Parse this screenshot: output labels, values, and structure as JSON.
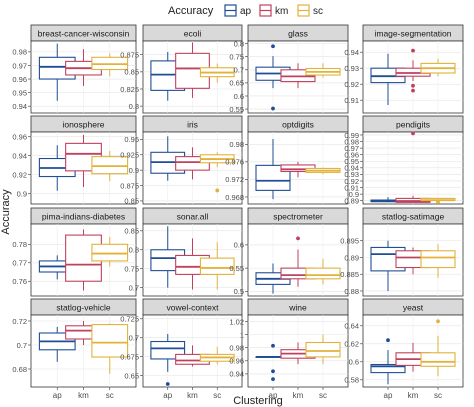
{
  "legend": {
    "title": "Accuracy",
    "items": [
      {
        "key": "ap",
        "label": "ap",
        "color": "#1f4e96"
      },
      {
        "key": "km",
        "label": "km",
        "color": "#c0415e"
      },
      {
        "key": "sc",
        "label": "sc",
        "color": "#e2b23a"
      }
    ],
    "placement": "top"
  },
  "chart_data": {
    "type": "box",
    "xlabel": "Clustering",
    "ylabel": "Accuracy",
    "categories": [
      "ap",
      "km",
      "sc"
    ],
    "grid": true,
    "facets": [
      {
        "title": "breast-cancer-wisconsin",
        "ylim": [
          0.935,
          0.988
        ],
        "ticks": [
          0.94,
          0.95,
          0.96,
          0.97,
          0.98
        ],
        "boxes": [
          {
            "group": "ap",
            "min": 0.944,
            "q1": 0.96,
            "median": 0.969,
            "q3": 0.976,
            "max": 0.986,
            "outliers": []
          },
          {
            "group": "km",
            "min": 0.955,
            "q1": 0.963,
            "median": 0.968,
            "q3": 0.973,
            "max": 0.982,
            "outliers": []
          },
          {
            "group": "sc",
            "min": 0.962,
            "q1": 0.967,
            "median": 0.971,
            "q3": 0.976,
            "max": 0.979,
            "outliers": []
          }
        ]
      },
      {
        "title": "ecoli",
        "ylim": [
          0.79,
          0.895
        ],
        "ticks": [
          0.8,
          0.825,
          0.85,
          0.875
        ],
        "boxes": [
          {
            "group": "ap",
            "min": 0.808,
            "q1": 0.823,
            "median": 0.846,
            "q3": 0.866,
            "max": 0.879,
            "outliers": []
          },
          {
            "group": "km",
            "min": 0.812,
            "q1": 0.826,
            "median": 0.855,
            "q3": 0.877,
            "max": 0.893,
            "outliers": []
          },
          {
            "group": "sc",
            "min": 0.834,
            "q1": 0.843,
            "median": 0.849,
            "q3": 0.856,
            "max": 0.862,
            "outliers": []
          }
        ]
      },
      {
        "title": "glass",
        "ylim": [
          0.535,
          0.81
        ],
        "ticks": [
          0.55,
          0.6,
          0.65,
          0.7,
          0.75,
          0.8
        ],
        "boxes": [
          {
            "group": "ap",
            "min": 0.63,
            "q1": 0.66,
            "median": 0.686,
            "q3": 0.71,
            "max": 0.752,
            "outliers": [
              0.79,
              0.552
            ]
          },
          {
            "group": "km",
            "min": 0.63,
            "q1": 0.655,
            "median": 0.675,
            "q3": 0.7,
            "max": 0.725,
            "outliers": []
          },
          {
            "group": "sc",
            "min": 0.67,
            "q1": 0.68,
            "median": 0.692,
            "q3": 0.705,
            "max": 0.725,
            "outliers": []
          }
        ]
      },
      {
        "title": "image-segmentation",
        "ylim": [
          0.902,
          0.947
        ],
        "ticks": [
          0.91,
          0.92,
          0.93,
          0.94
        ],
        "boxes": [
          {
            "group": "ap",
            "min": 0.907,
            "q1": 0.921,
            "median": 0.925,
            "q3": 0.93,
            "max": 0.939,
            "outliers": []
          },
          {
            "group": "km",
            "min": 0.922,
            "q1": 0.925,
            "median": 0.927,
            "q3": 0.93,
            "max": 0.935,
            "outliers": [
              0.941,
              0.919,
              0.916
            ]
          },
          {
            "group": "sc",
            "min": 0.925,
            "q1": 0.927,
            "median": 0.93,
            "q3": 0.933,
            "max": 0.936,
            "outliers": []
          }
        ]
      },
      {
        "title": "ionosphere",
        "ylim": [
          0.889,
          0.965
        ],
        "ticks": [
          0.9,
          0.92,
          0.94,
          0.96
        ],
        "boxes": [
          {
            "group": "ap",
            "min": 0.903,
            "q1": 0.918,
            "median": 0.927,
            "q3": 0.937,
            "max": 0.951,
            "outliers": []
          },
          {
            "group": "km",
            "min": 0.907,
            "q1": 0.924,
            "median": 0.942,
            "q3": 0.953,
            "max": 0.962,
            "outliers": []
          },
          {
            "group": "sc",
            "min": 0.913,
            "q1": 0.921,
            "median": 0.929,
            "q3": 0.939,
            "max": 0.945,
            "outliers": []
          }
        ]
      },
      {
        "title": "iris",
        "ylim": [
          0.845,
          0.962
        ],
        "ticks": [
          0.85,
          0.875,
          0.9,
          0.925,
          0.95
        ],
        "boxes": [
          {
            "group": "ap",
            "min": 0.883,
            "q1": 0.895,
            "median": 0.913,
            "q3": 0.929,
            "max": 0.955,
            "outliers": []
          },
          {
            "group": "km",
            "min": 0.885,
            "q1": 0.9,
            "median": 0.913,
            "q3": 0.922,
            "max": 0.937,
            "outliers": []
          },
          {
            "group": "sc",
            "min": 0.905,
            "q1": 0.912,
            "median": 0.918,
            "q3": 0.925,
            "max": 0.929,
            "outliers": [
              0.867
            ]
          }
        ]
      },
      {
        "title": "optdigits",
        "ylim": [
          0.9664,
          0.9828
        ],
        "ticks": [
          0.968,
          0.972,
          0.976,
          0.98
        ],
        "boxes": [
          {
            "group": "ap",
            "min": 0.9675,
            "q1": 0.9695,
            "median": 0.9717,
            "q3": 0.9752,
            "max": 0.9812,
            "outliers": []
          },
          {
            "group": "km",
            "min": 0.9725,
            "q1": 0.9738,
            "median": 0.9743,
            "q3": 0.9753,
            "max": 0.976,
            "outliers": []
          },
          {
            "group": "sc",
            "min": 0.9732,
            "q1": 0.9736,
            "median": 0.974,
            "q3": 0.9745,
            "max": 0.9747,
            "outliers": []
          }
        ]
      },
      {
        "title": "pendigits",
        "ylim": [
          0.885,
          0.9945
        ],
        "ticks": [
          0.89,
          0.9,
          0.91,
          0.92,
          0.93,
          0.94,
          0.95,
          0.96,
          0.97,
          0.98,
          0.99
        ],
        "boxes": [
          {
            "group": "ap",
            "min": 0.8875,
            "q1": 0.8885,
            "median": 0.8898,
            "q3": 0.891,
            "max": 0.8955,
            "outliers": []
          },
          {
            "group": "km",
            "min": 0.8865,
            "q1": 0.8875,
            "median": 0.8895,
            "q3": 0.8935,
            "max": 0.8975,
            "outliers": [
              0.9925
            ]
          },
          {
            "group": "sc",
            "min": 0.8895,
            "q1": 0.8905,
            "median": 0.8908,
            "q3": 0.8935,
            "max": 0.894,
            "outliers": [
              0.8878
            ]
          }
        ]
      },
      {
        "title": "pima-indians-diabetes",
        "ylim": [
          0.752,
          0.791
        ],
        "ticks": [
          0.76,
          0.77,
          0.78
        ],
        "boxes": [
          {
            "group": "ap",
            "min": 0.761,
            "q1": 0.765,
            "median": 0.768,
            "q3": 0.771,
            "max": 0.774,
            "outliers": []
          },
          {
            "group": "km",
            "min": 0.755,
            "q1": 0.76,
            "median": 0.769,
            "q3": 0.785,
            "max": 0.788,
            "outliers": []
          },
          {
            "group": "sc",
            "min": 0.768,
            "q1": 0.771,
            "median": 0.775,
            "q3": 0.78,
            "max": 0.784,
            "outliers": []
          }
        ]
      },
      {
        "title": "sonar.all",
        "ylim": [
          0.678,
          0.868
        ],
        "ticks": [
          0.7,
          0.75,
          0.8,
          0.85
        ],
        "boxes": [
          {
            "group": "ap",
            "min": 0.7,
            "q1": 0.745,
            "median": 0.778,
            "q3": 0.8,
            "max": 0.862,
            "outliers": []
          },
          {
            "group": "km",
            "min": 0.695,
            "q1": 0.735,
            "median": 0.755,
            "q3": 0.785,
            "max": 0.83,
            "outliers": []
          },
          {
            "group": "sc",
            "min": 0.695,
            "q1": 0.735,
            "median": 0.752,
            "q3": 0.778,
            "max": 0.82,
            "outliers": []
          }
        ]
      },
      {
        "title": "spectrometer",
        "ylim": [
          0.49,
          0.645
        ],
        "ticks": [
          0.5,
          0.55,
          0.6
        ],
        "boxes": [
          {
            "group": "ap",
            "min": 0.495,
            "q1": 0.515,
            "median": 0.527,
            "q3": 0.54,
            "max": 0.56,
            "outliers": []
          },
          {
            "group": "km",
            "min": 0.51,
            "q1": 0.527,
            "median": 0.535,
            "q3": 0.55,
            "max": 0.59,
            "outliers": [
              0.614
            ]
          },
          {
            "group": "sc",
            "min": 0.515,
            "q1": 0.527,
            "median": 0.535,
            "q3": 0.55,
            "max": 0.57,
            "outliers": []
          }
        ]
      },
      {
        "title": "statlog-satimage",
        "ylim": [
          0.8785,
          0.9
        ],
        "ticks": [
          0.88,
          0.885,
          0.89,
          0.895
        ],
        "boxes": [
          {
            "group": "ap",
            "min": 0.88,
            "q1": 0.886,
            "median": 0.891,
            "q3": 0.893,
            "max": 0.895,
            "outliers": []
          },
          {
            "group": "km",
            "min": 0.885,
            "q1": 0.887,
            "median": 0.89,
            "q3": 0.892,
            "max": 0.893,
            "outliers": []
          },
          {
            "group": "sc",
            "min": 0.884,
            "q1": 0.887,
            "median": 0.89,
            "q3": 0.892,
            "max": 0.894,
            "outliers": []
          }
        ]
      },
      {
        "title": "statlog-vehicle",
        "ylim": [
          0.665,
          0.725
        ],
        "ticks": [
          0.68,
          0.7,
          0.72
        ],
        "boxes": [
          {
            "group": "ap",
            "min": 0.686,
            "q1": 0.696,
            "median": 0.703,
            "q3": 0.71,
            "max": 0.715,
            "outliers": []
          },
          {
            "group": "km",
            "min": 0.7,
            "q1": 0.705,
            "median": 0.712,
            "q3": 0.716,
            "max": 0.72,
            "outliers": []
          },
          {
            "group": "sc",
            "min": 0.676,
            "q1": 0.69,
            "median": 0.702,
            "q3": 0.717,
            "max": 0.718,
            "outliers": []
          }
        ]
      },
      {
        "title": "vowel-context",
        "ylim": [
          0.635,
          0.73
        ],
        "ticks": [
          0.65,
          0.675,
          0.7,
          0.725
        ],
        "boxes": [
          {
            "group": "ap",
            "min": 0.655,
            "q1": 0.672,
            "median": 0.686,
            "q3": 0.695,
            "max": 0.705,
            "outliers": [
              0.639
            ]
          },
          {
            "group": "km",
            "min": 0.662,
            "q1": 0.665,
            "median": 0.67,
            "q3": 0.678,
            "max": 0.69,
            "outliers": []
          },
          {
            "group": "sc",
            "min": 0.665,
            "q1": 0.669,
            "median": 0.674,
            "q3": 0.678,
            "max": 0.688,
            "outliers": []
          }
        ]
      },
      {
        "title": "wine",
        "ylim": [
          0.92,
          1.03
        ],
        "ticks": [
          0.94,
          0.96,
          0.98,
          1.0,
          1.02
        ],
        "boxes": [
          {
            "group": "ap",
            "min": 0.966,
            "q1": 0.966,
            "median": 0.966,
            "q3": 0.966,
            "max": 0.966,
            "outliers": [
              0.983,
              0.944,
              0.932
            ]
          },
          {
            "group": "km",
            "min": 0.955,
            "q1": 0.964,
            "median": 0.971,
            "q3": 0.977,
            "max": 0.988,
            "outliers": []
          },
          {
            "group": "sc",
            "min": 0.955,
            "q1": 0.966,
            "median": 0.975,
            "q3": 0.988,
            "max": 1.0,
            "outliers": []
          }
        ]
      },
      {
        "title": "yeast",
        "ylim": [
          0.572,
          0.652
        ],
        "ticks": [
          0.58,
          0.6,
          0.62,
          0.64
        ],
        "boxes": [
          {
            "group": "ap",
            "min": 0.575,
            "q1": 0.588,
            "median": 0.595,
            "q3": 0.597,
            "max": 0.613,
            "outliers": [
              0.624
            ]
          },
          {
            "group": "km",
            "min": 0.589,
            "q1": 0.596,
            "median": 0.603,
            "q3": 0.61,
            "max": 0.621,
            "outliers": []
          },
          {
            "group": "sc",
            "min": 0.584,
            "q1": 0.595,
            "median": 0.6,
            "q3": 0.61,
            "max": 0.629,
            "outliers": [
              0.645
            ]
          }
        ]
      }
    ]
  }
}
